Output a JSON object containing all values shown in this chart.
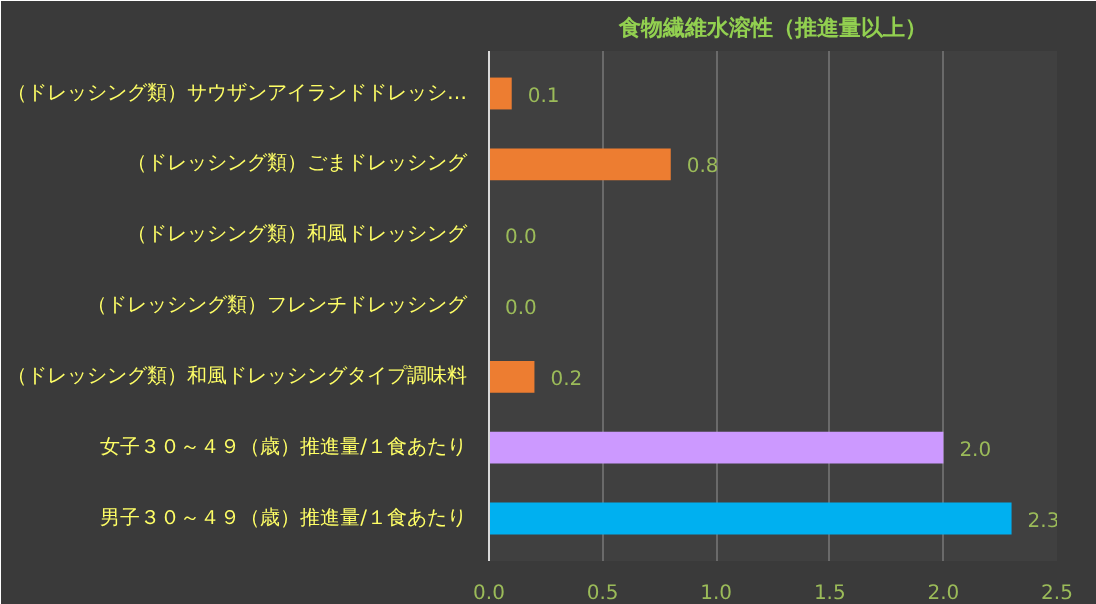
{
  "chart_data": {
    "type": "bar",
    "orientation": "horizontal",
    "title": "食物繊維水溶性（推進量以上）",
    "categories": [
      "（ドレッシング類）サウザンアイランドドレッシ…",
      "（ドレッシング類）ごまドレッシング",
      "（ドレッシング類）和風ドレッシング",
      "（ドレッシング類）フレンチドレッシング",
      "（ドレッシング類）和風ドレッシングタイプ調味料",
      "女子３０～４９（歳）推進量/１食あたり",
      "男子３０～４９（歳）推進量/１食あたり"
    ],
    "values": [
      0.1,
      0.8,
      0.0,
      0.0,
      0.2,
      2.0,
      2.3
    ],
    "colors": [
      "#ed7d31",
      "#ed7d31",
      "#ed7d31",
      "#ed7d31",
      "#ed7d31",
      "#cc99ff",
      "#00b0f0"
    ],
    "xlim": [
      0,
      2.5
    ],
    "xticks": [
      {
        "value": 0,
        "label": "0.0"
      },
      {
        "value": 0.5,
        "label": "0.5"
      },
      {
        "value": 1,
        "label": "1.0"
      },
      {
        "value": 1.5,
        "label": "1.5"
      },
      {
        "value": 2,
        "label": "2.0"
      },
      {
        "value": 2.5,
        "label": "2.5"
      }
    ],
    "value_labels": [
      "0.1",
      "0.8",
      "0.0",
      "0.0",
      "0.2",
      "2.0",
      "2.3"
    ],
    "grid": "x"
  }
}
